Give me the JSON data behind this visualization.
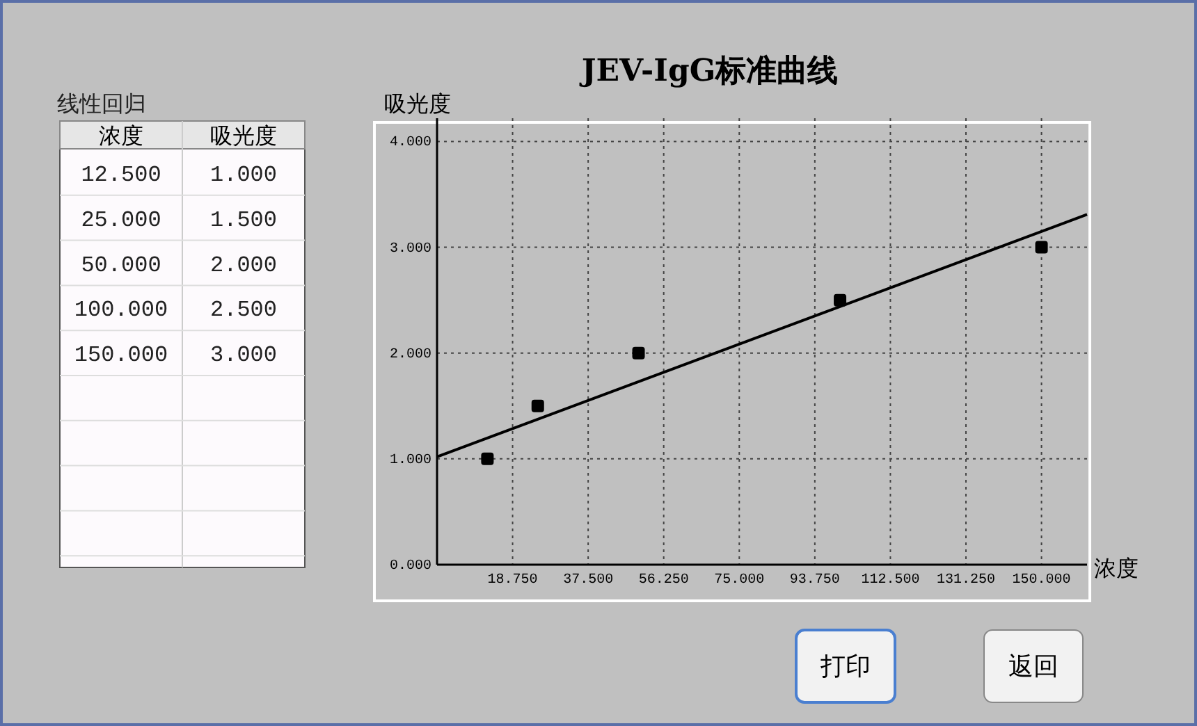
{
  "chart_data": {
    "type": "scatter",
    "title": "JEV-IgG标准曲线",
    "xlabel": "浓度",
    "ylabel": "吸光度",
    "xlim": [
      0,
      161.3
    ],
    "ylim": [
      0,
      4.22
    ],
    "xticks": [
      {
        "value": 18.75,
        "label": "18.750"
      },
      {
        "value": 37.5,
        "label": "37.500"
      },
      {
        "value": 56.25,
        "label": "56.250"
      },
      {
        "value": 75,
        "label": "75.000"
      },
      {
        "value": 93.75,
        "label": "93.750"
      },
      {
        "value": 112.5,
        "label": "112.500"
      },
      {
        "value": 131.25,
        "label": "131.250"
      },
      {
        "value": 150,
        "label": "150.000"
      }
    ],
    "yticks": [
      {
        "value": 0,
        "label": "0.000"
      },
      {
        "value": 1,
        "label": "1.000"
      },
      {
        "value": 2,
        "label": "2.000"
      },
      {
        "value": 3,
        "label": "3.000"
      },
      {
        "value": 4,
        "label": "4.000"
      }
    ],
    "grid": true,
    "marker": "square",
    "series": [
      {
        "type": "scatter",
        "color": "#000000",
        "x": [
          12.5,
          25,
          50,
          100,
          150
        ],
        "values": [
          1,
          1.5,
          2,
          2.5,
          3
        ]
      },
      {
        "type": "line",
        "color": "#000000",
        "marker": "none",
        "line_style": "solid",
        "x": [
          0,
          161.3
        ],
        "values": [
          1.02,
          3.31
        ]
      }
    ],
    "annotations": [
      "线性回归",
      "12.500",
      "25.000",
      "50.000",
      "100.000",
      "150.000",
      "1.000",
      "1.500",
      "2.000",
      "2.500",
      "3.000",
      "打印",
      "返回"
    ]
  }
}
